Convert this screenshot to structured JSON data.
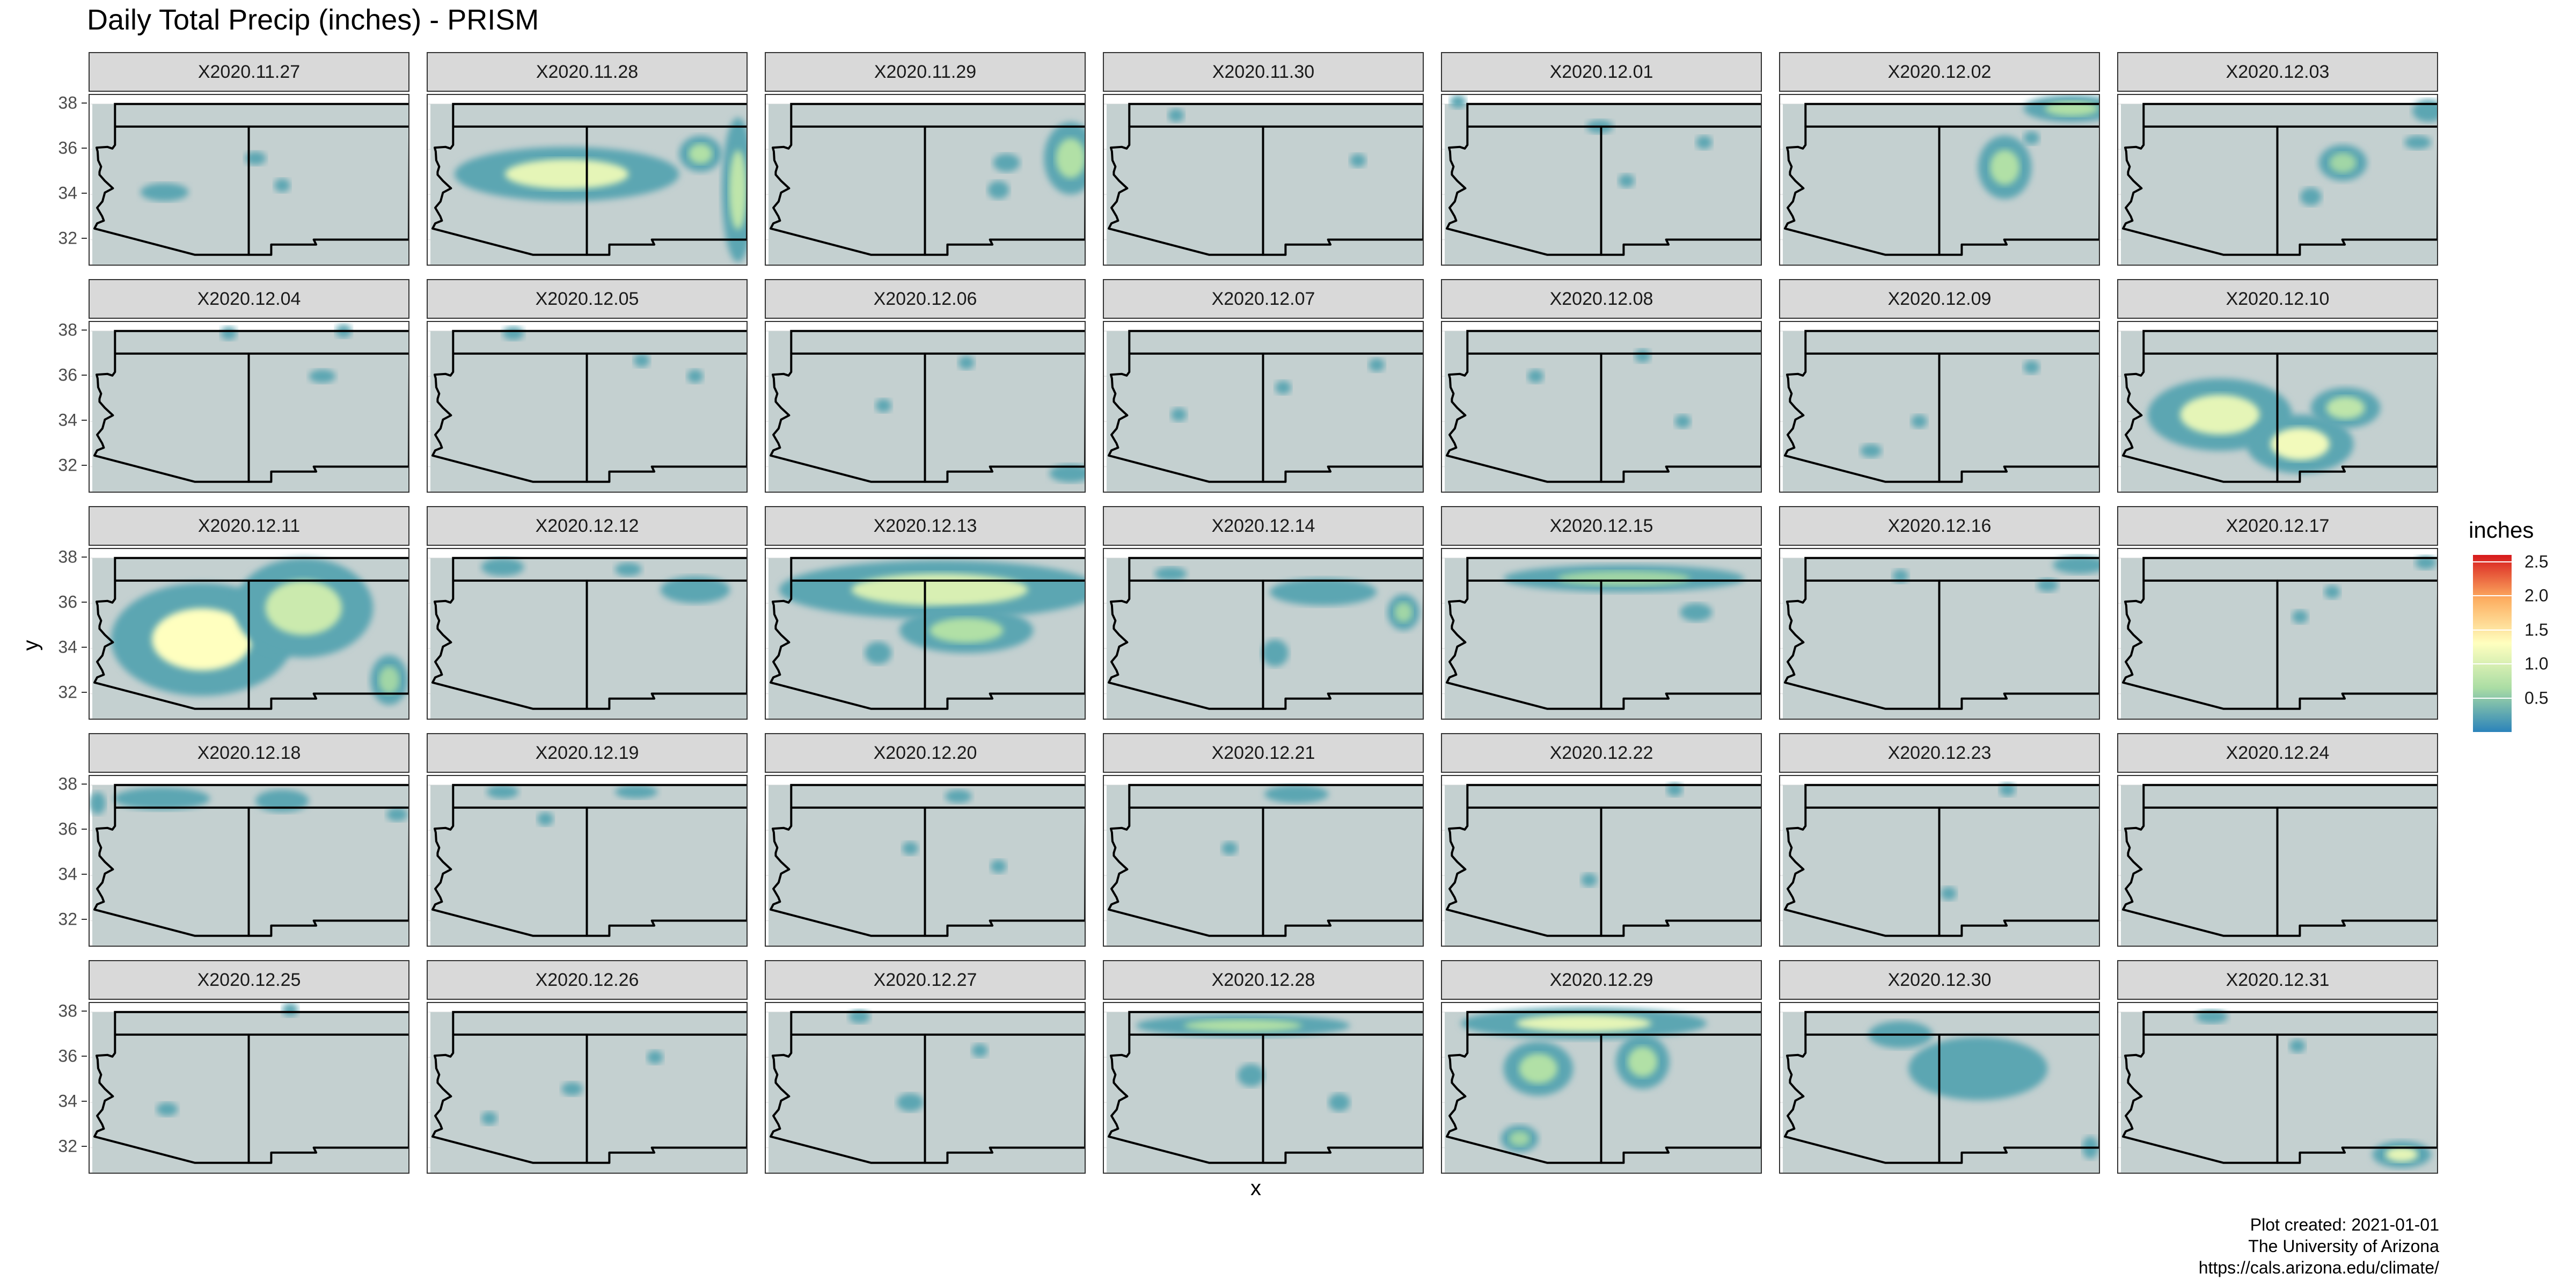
{
  "title": "Daily Total Precip (inches) - PRISM",
  "xlabel": "x",
  "ylabel": "y",
  "caption": {
    "line1": "Plot created: 2021-01-01",
    "line2": "The University of Arizona",
    "line3": "https://cals.arizona.edu/climate/"
  },
  "legend": {
    "title": "inches",
    "ticks": [
      {
        "label": "2.5",
        "value": 2.5
      },
      {
        "label": "2.0",
        "value": 2.0
      },
      {
        "label": "1.5",
        "value": 1.5
      },
      {
        "label": "1.0",
        "value": 1.0
      },
      {
        "label": "0.5",
        "value": 0.5
      }
    ],
    "range": [
      0.0,
      2.6
    ],
    "colors": [
      "#2b83ba",
      "#abdda4",
      "#ffffbf",
      "#fdae61",
      "#d7191c"
    ]
  },
  "colors": {
    "background": "#c4d0d0",
    "boundary": "#000000",
    "strip": "#d9d9d9",
    "grid": "#ebebeb"
  },
  "chart_data": {
    "type": "heatmap",
    "title": "Daily Total Precip (inches) - PRISM",
    "xlabel": "x",
    "ylabel": "y",
    "legend_title": "inches",
    "legend_placement": "right",
    "color_scale": "Spectral reversed",
    "value_range": [
      0,
      2.6
    ],
    "xlim": [
      -115,
      -103
    ],
    "ylim": [
      30.8,
      38.4
    ],
    "y_ticks": [
      32,
      34,
      36,
      38
    ],
    "grid": true,
    "facets_nrow": 5,
    "facets_ncol": 7,
    "panels": [
      {
        "label": "X2020.11.27",
        "blobs": [
          [
            -112.2,
            34.1,
            0.9,
            0.4,
            0.3
          ],
          [
            -108.8,
            35.6,
            0.4,
            0.3,
            0.3
          ],
          [
            -107.8,
            34.4,
            0.3,
            0.3,
            0.3
          ]
        ]
      },
      {
        "label": "X2020.11.28",
        "blobs": [
          [
            -109.8,
            34.9,
            4.2,
            1.2,
            1.1
          ],
          [
            -103.4,
            34.2,
            0.6,
            3.2,
            0.8
          ],
          [
            -104.8,
            35.8,
            0.8,
            0.8,
            0.7
          ]
        ]
      },
      {
        "label": "X2020.11.29",
        "blobs": [
          [
            -103.6,
            35.6,
            1.0,
            1.6,
            0.7
          ],
          [
            -106.0,
            35.4,
            0.5,
            0.4,
            0.4
          ],
          [
            -106.3,
            34.2,
            0.4,
            0.4,
            0.3
          ]
        ]
      },
      {
        "label": "X2020.11.30",
        "blobs": [
          [
            -112.3,
            37.5,
            0.3,
            0.3,
            0.3
          ],
          [
            -105.5,
            35.5,
            0.3,
            0.3,
            0.3
          ]
        ]
      },
      {
        "label": "X2020.12.01",
        "blobs": [
          [
            -109.1,
            37.0,
            0.5,
            0.3,
            0.3
          ],
          [
            -105.2,
            36.3,
            0.3,
            0.3,
            0.3
          ],
          [
            -108.1,
            34.6,
            0.3,
            0.3,
            0.3
          ],
          [
            -114.4,
            38.1,
            0.3,
            0.3,
            0.3
          ]
        ]
      },
      {
        "label": "X2020.12.02",
        "blobs": [
          [
            -104.1,
            37.8,
            1.8,
            0.6,
            0.7
          ],
          [
            -106.6,
            35.2,
            1.0,
            1.4,
            0.7
          ],
          [
            -105.6,
            36.5,
            0.3,
            0.3,
            0.3
          ]
        ]
      },
      {
        "label": "X2020.12.03",
        "blobs": [
          [
            -106.6,
            35.4,
            0.9,
            0.8,
            0.6
          ],
          [
            -103.4,
            37.7,
            0.6,
            0.5,
            0.5
          ],
          [
            -107.8,
            33.9,
            0.4,
            0.4,
            0.3
          ],
          [
            -103.8,
            36.3,
            0.5,
            0.3,
            0.3
          ]
        ]
      },
      {
        "label": "X2020.12.04",
        "blobs": [
          [
            -106.3,
            36.0,
            0.5,
            0.3,
            0.3
          ],
          [
            -109.8,
            37.9,
            0.3,
            0.3,
            0.3
          ],
          [
            -105.5,
            38.0,
            0.3,
            0.3,
            0.3
          ]
        ]
      },
      {
        "label": "X2020.12.05",
        "blobs": [
          [
            -111.8,
            37.9,
            0.4,
            0.3,
            0.3
          ],
          [
            -107.0,
            36.7,
            0.3,
            0.3,
            0.3
          ],
          [
            -105.0,
            36.0,
            0.3,
            0.3,
            0.3
          ]
        ]
      },
      {
        "label": "X2020.12.06",
        "blobs": [
          [
            -103.6,
            31.7,
            0.8,
            0.4,
            0.5
          ],
          [
            -107.5,
            36.6,
            0.3,
            0.3,
            0.3
          ],
          [
            -110.6,
            34.7,
            0.3,
            0.3,
            0.3
          ]
        ]
      },
      {
        "label": "X2020.12.07",
        "blobs": [
          [
            -108.3,
            35.5,
            0.3,
            0.3,
            0.3
          ],
          [
            -112.2,
            34.3,
            0.3,
            0.3,
            0.3
          ],
          [
            -104.8,
            36.5,
            0.3,
            0.3,
            0.3
          ]
        ]
      },
      {
        "label": "X2020.12.08",
        "blobs": [
          [
            -107.5,
            36.9,
            0.3,
            0.3,
            0.3
          ],
          [
            -111.5,
            36.0,
            0.3,
            0.3,
            0.3
          ],
          [
            -106.0,
            34.0,
            0.3,
            0.3,
            0.3
          ]
        ]
      },
      {
        "label": "X2020.12.09",
        "blobs": [
          [
            -105.6,
            36.4,
            0.3,
            0.3,
            0.3
          ],
          [
            -111.6,
            32.7,
            0.4,
            0.3,
            0.3
          ],
          [
            -109.8,
            34.0,
            0.3,
            0.3,
            0.3
          ]
        ]
      },
      {
        "label": "X2020.12.10",
        "blobs": [
          [
            -111.2,
            34.3,
            2.7,
            1.6,
            1.1
          ],
          [
            -108.2,
            33.0,
            2.0,
            1.3,
            1.2
          ],
          [
            -106.5,
            34.6,
            1.3,
            0.9,
            0.8
          ]
        ]
      },
      {
        "label": "X2020.12.11",
        "blobs": [
          [
            -110.8,
            34.4,
            3.4,
            2.5,
            1.3
          ],
          [
            -107.0,
            35.8,
            2.6,
            2.2,
            0.9
          ],
          [
            -103.8,
            32.6,
            0.7,
            1.1,
            0.6
          ]
        ]
      },
      {
        "label": "X2020.12.12",
        "blobs": [
          [
            -105.0,
            36.6,
            1.3,
            0.6,
            0.5
          ],
          [
            -112.2,
            37.6,
            0.8,
            0.4,
            0.4
          ],
          [
            -107.5,
            37.5,
            0.5,
            0.3,
            0.3
          ]
        ]
      },
      {
        "label": "X2020.12.13",
        "blobs": [
          [
            -108.5,
            36.6,
            6.0,
            1.3,
            1.0
          ],
          [
            -107.5,
            34.8,
            2.5,
            1.0,
            0.7
          ],
          [
            -110.8,
            33.8,
            0.5,
            0.5,
            0.4
          ]
        ]
      },
      {
        "label": "X2020.12.14",
        "blobs": [
          [
            -106.8,
            36.5,
            2.0,
            0.6,
            0.4
          ],
          [
            -103.8,
            35.6,
            0.6,
            0.8,
            0.6
          ],
          [
            -108.6,
            33.8,
            0.5,
            0.6,
            0.4
          ],
          [
            -112.5,
            37.3,
            0.6,
            0.3,
            0.3
          ]
        ]
      },
      {
        "label": "X2020.12.15",
        "blobs": [
          [
            -108.2,
            37.1,
            4.5,
            0.6,
            0.6
          ],
          [
            -105.5,
            35.6,
            0.6,
            0.4,
            0.3
          ]
        ]
      },
      {
        "label": "X2020.12.16",
        "blobs": [
          [
            -103.8,
            37.7,
            1.0,
            0.4,
            0.5
          ],
          [
            -105.0,
            36.8,
            0.4,
            0.3,
            0.3
          ],
          [
            -110.5,
            37.2,
            0.3,
            0.3,
            0.3
          ]
        ]
      },
      {
        "label": "X2020.12.17",
        "blobs": [
          [
            -103.5,
            37.8,
            0.4,
            0.3,
            0.3
          ],
          [
            -108.2,
            35.4,
            0.3,
            0.3,
            0.3
          ],
          [
            -107.0,
            36.5,
            0.3,
            0.3,
            0.3
          ]
        ]
      },
      {
        "label": "X2020.12.18",
        "blobs": [
          [
            -112.3,
            37.4,
            1.8,
            0.5,
            0.5
          ],
          [
            -107.8,
            37.3,
            1.0,
            0.5,
            0.5
          ],
          [
            -114.7,
            37.2,
            0.3,
            0.5,
            0.4
          ],
          [
            -103.5,
            36.7,
            0.4,
            0.3,
            0.3
          ]
        ]
      },
      {
        "label": "X2020.12.19",
        "blobs": [
          [
            -112.2,
            37.7,
            0.6,
            0.3,
            0.3
          ],
          [
            -107.2,
            37.7,
            0.8,
            0.3,
            0.3
          ],
          [
            -110.6,
            36.5,
            0.3,
            0.3,
            0.3
          ]
        ]
      },
      {
        "label": "X2020.12.20",
        "blobs": [
          [
            -107.8,
            37.5,
            0.5,
            0.3,
            0.3
          ],
          [
            -109.6,
            35.2,
            0.3,
            0.3,
            0.3
          ],
          [
            -106.3,
            34.4,
            0.3,
            0.3,
            0.3
          ]
        ]
      },
      {
        "label": "X2020.12.21",
        "blobs": [
          [
            -107.8,
            37.6,
            1.2,
            0.4,
            0.4
          ],
          [
            -110.3,
            35.2,
            0.3,
            0.3,
            0.3
          ]
        ]
      },
      {
        "label": "X2020.12.22",
        "blobs": [
          [
            -109.5,
            33.8,
            0.3,
            0.3,
            0.3
          ],
          [
            -106.3,
            37.8,
            0.3,
            0.3,
            0.3
          ]
        ]
      },
      {
        "label": "X2020.12.23",
        "blobs": [
          [
            -106.5,
            37.8,
            0.3,
            0.3,
            0.3
          ],
          [
            -108.7,
            33.2,
            0.3,
            0.3,
            0.3
          ]
        ]
      },
      {
        "label": "X2020.12.24",
        "blobs": []
      },
      {
        "label": "X2020.12.25",
        "blobs": [
          [
            -112.1,
            33.7,
            0.4,
            0.3,
            0.3
          ],
          [
            -107.5,
            38.1,
            0.3,
            0.3,
            0.3
          ]
        ]
      },
      {
        "label": "X2020.12.26",
        "blobs": [
          [
            -109.6,
            34.6,
            0.4,
            0.3,
            0.3
          ],
          [
            -112.7,
            33.3,
            0.3,
            0.3,
            0.3
          ],
          [
            -106.5,
            36.0,
            0.3,
            0.3,
            0.3
          ]
        ]
      },
      {
        "label": "X2020.12.27",
        "blobs": [
          [
            -109.6,
            34.0,
            0.5,
            0.4,
            0.4
          ],
          [
            -111.5,
            37.8,
            0.4,
            0.3,
            0.3
          ],
          [
            -107.0,
            36.3,
            0.3,
            0.3,
            0.3
          ]
        ]
      },
      {
        "label": "X2020.12.28",
        "blobs": [
          [
            -109.8,
            37.4,
            4.0,
            0.5,
            0.7
          ],
          [
            -109.5,
            35.2,
            0.5,
            0.5,
            0.4
          ],
          [
            -106.2,
            34.0,
            0.4,
            0.4,
            0.3
          ]
        ]
      },
      {
        "label": "X2020.12.29",
        "blobs": [
          [
            -109.7,
            37.5,
            4.6,
            0.7,
            1.1
          ],
          [
            -111.4,
            35.5,
            1.3,
            1.2,
            0.7
          ],
          [
            -107.5,
            35.8,
            1.0,
            1.2,
            0.7
          ],
          [
            -112.1,
            32.4,
            0.7,
            0.6,
            0.6
          ]
        ]
      },
      {
        "label": "X2020.12.30",
        "blobs": [
          [
            -107.6,
            35.5,
            2.6,
            1.4,
            0.5
          ],
          [
            -110.5,
            37.0,
            1.2,
            0.6,
            0.4
          ],
          [
            -103.4,
            32.0,
            0.3,
            0.5,
            0.4
          ]
        ]
      },
      {
        "label": "X2020.12.31",
        "blobs": [
          [
            -104.4,
            31.7,
            1.1,
            0.6,
            1.1
          ],
          [
            -111.5,
            37.8,
            0.6,
            0.3,
            0.3
          ],
          [
            -108.3,
            36.5,
            0.3,
            0.3,
            0.3
          ]
        ]
      }
    ]
  }
}
